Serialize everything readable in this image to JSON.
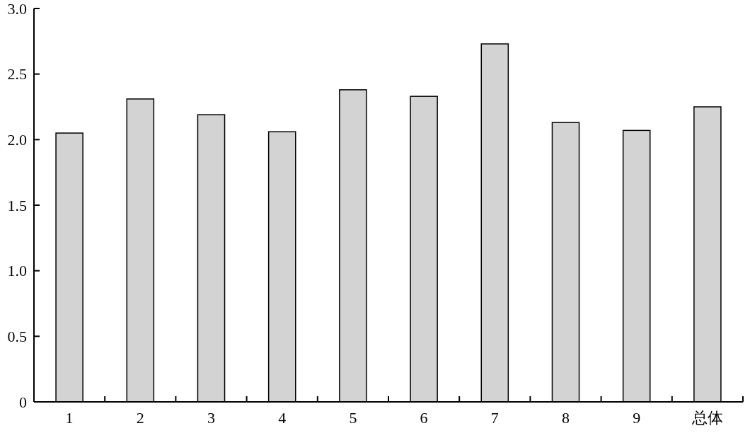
{
  "chart_data": {
    "type": "bar",
    "categories": [
      "1",
      "2",
      "3",
      "4",
      "5",
      "6",
      "7",
      "8",
      "9",
      "总体"
    ],
    "values": [
      2.05,
      2.31,
      2.19,
      2.06,
      2.38,
      2.33,
      2.73,
      2.13,
      2.07,
      2.25
    ],
    "color": "#d3d3d3",
    "ylim": [
      0,
      3
    ],
    "yticks": [
      0,
      {
        "value": 0.5,
        "label": "0.5"
      },
      {
        "value": 1,
        "label": "1.0"
      },
      {
        "value": 1.5,
        "label": "1.5"
      },
      {
        "value": 2,
        "label": "2.0"
      },
      {
        "value": 2.5,
        "label": "2.5"
      },
      {
        "value": 3,
        "label": "3.0"
      }
    ],
    "grid": false
  }
}
